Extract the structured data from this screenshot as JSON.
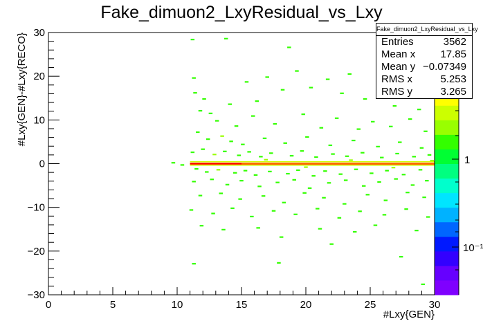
{
  "chart_data": {
    "type": "heatmap",
    "title": "Fake_dimuon2_LxyResidual_vs_Lxy",
    "xlabel": "#Lxy{GEN}",
    "ylabel": "#Lxy{GEN}-#Lxy{RECO}",
    "xlim": [
      0,
      30
    ],
    "ylim": [
      -30,
      30
    ],
    "x_ticks": [
      "0",
      "5",
      "10",
      "15",
      "20",
      "25",
      "30"
    ],
    "y_ticks": [
      "−30",
      "−20",
      "−10",
      "0",
      "10",
      "20",
      "30"
    ],
    "colorbar": {
      "scale": "log",
      "tick_labels": [
        "1",
        "10⁻¹"
      ],
      "colors": [
        "#7f00ff",
        "#6600ff",
        "#3300ff",
        "#0019ff",
        "#0066ff",
        "#00b2ff",
        "#00e5ff",
        "#00ffcc",
        "#00ff80",
        "#00ff33",
        "#33ff00",
        "#99ff00",
        "#ccff00",
        "#ffff00",
        "#ffcc00",
        "#ff9900",
        "#ff6600",
        "#ff0000"
      ]
    },
    "stats": {
      "title": "Fake_dimuon2_LxyResidual_vs_Lxy",
      "rows": [
        {
          "label": "Entries",
          "value": "3562"
        },
        {
          "label": "Mean x",
          "value": "17.85"
        },
        {
          "label": "Mean y",
          "value": "−0.07349"
        },
        {
          "label": "RMS x",
          "value": "5.253"
        },
        {
          "label": "RMS y",
          "value": "3.265"
        }
      ]
    },
    "dense_band": {
      "x_range": [
        11.0,
        30.0
      ],
      "y": 0.0,
      "color": "#ff6600"
    },
    "cells": [
      {
        "x": 9.7,
        "y": 0.2,
        "c": "#33ff00"
      },
      {
        "x": 10.4,
        "y": -0.3,
        "c": "#33ff00"
      },
      {
        "x": 11.2,
        "y": 28.4,
        "c": "#33ff00"
      },
      {
        "x": 13.8,
        "y": 28.6,
        "c": "#33ff00"
      },
      {
        "x": 18.7,
        "y": 26.6,
        "c": "#33ff00"
      },
      {
        "x": 11.3,
        "y": 19.6,
        "c": "#33ff00"
      },
      {
        "x": 11.4,
        "y": 16.2,
        "c": "#33ff00"
      },
      {
        "x": 12.1,
        "y": 14.8,
        "c": "#33ff00"
      },
      {
        "x": 11.8,
        "y": 12.1,
        "c": "#33ff00"
      },
      {
        "x": 12.6,
        "y": 11.5,
        "c": "#33ff00"
      },
      {
        "x": 14.1,
        "y": 13.6,
        "c": "#33ff00"
      },
      {
        "x": 15.4,
        "y": 18.7,
        "c": "#33ff00"
      },
      {
        "x": 16.2,
        "y": 14.3,
        "c": "#33ff00"
      },
      {
        "x": 17.0,
        "y": 19.8,
        "c": "#33ff00"
      },
      {
        "x": 18.2,
        "y": 16.9,
        "c": "#33ff00"
      },
      {
        "x": 19.3,
        "y": 21.2,
        "c": "#33ff00"
      },
      {
        "x": 20.4,
        "y": 17.4,
        "c": "#33ff00"
      },
      {
        "x": 21.7,
        "y": 19.3,
        "c": "#33ff00"
      },
      {
        "x": 22.8,
        "y": 16.1,
        "c": "#33ff00"
      },
      {
        "x": 23.4,
        "y": 20.5,
        "c": "#33ff00"
      },
      {
        "x": 24.6,
        "y": 14.8,
        "c": "#33ff00"
      },
      {
        "x": 25.8,
        "y": 17.9,
        "c": "#33ff00"
      },
      {
        "x": 26.9,
        "y": 13.2,
        "c": "#33ff00"
      },
      {
        "x": 27.7,
        "y": 16.7,
        "c": "#33ff00"
      },
      {
        "x": 28.8,
        "y": 12.4,
        "c": "#33ff00"
      },
      {
        "x": 13.1,
        "y": 9.8,
        "c": "#33ff00"
      },
      {
        "x": 14.6,
        "y": 8.6,
        "c": "#33ff00"
      },
      {
        "x": 15.9,
        "y": 10.9,
        "c": "#33ff00"
      },
      {
        "x": 17.6,
        "y": 9.1,
        "c": "#33ff00"
      },
      {
        "x": 19.8,
        "y": 11.3,
        "c": "#33ff00"
      },
      {
        "x": 21.2,
        "y": 8.2,
        "c": "#33ff00"
      },
      {
        "x": 22.4,
        "y": 10.4,
        "c": "#33ff00"
      },
      {
        "x": 24.1,
        "y": 7.9,
        "c": "#33ff00"
      },
      {
        "x": 25.2,
        "y": 9.6,
        "c": "#33ff00"
      },
      {
        "x": 26.6,
        "y": 8.5,
        "c": "#33ff00"
      },
      {
        "x": 28.1,
        "y": 10.2,
        "c": "#33ff00"
      },
      {
        "x": 29.3,
        "y": 7.4,
        "c": "#33ff00"
      },
      {
        "x": 11.6,
        "y": 7.2,
        "c": "#33ff00"
      },
      {
        "x": 12.4,
        "y": 5.6,
        "c": "#33ff00"
      },
      {
        "x": 13.5,
        "y": 6.3,
        "c": "#99ff00"
      },
      {
        "x": 14.2,
        "y": 5.1,
        "c": "#33ff00"
      },
      {
        "x": 15.1,
        "y": 4.4,
        "c": "#33ff00"
      },
      {
        "x": 16.8,
        "y": 5.8,
        "c": "#33ff00"
      },
      {
        "x": 18.4,
        "y": 4.7,
        "c": "#33ff00"
      },
      {
        "x": 20.1,
        "y": 6.1,
        "c": "#33ff00"
      },
      {
        "x": 21.9,
        "y": 4.2,
        "c": "#33ff00"
      },
      {
        "x": 23.7,
        "y": 5.3,
        "c": "#33ff00"
      },
      {
        "x": 25.6,
        "y": 3.9,
        "c": "#33ff00"
      },
      {
        "x": 27.3,
        "y": 4.9,
        "c": "#33ff00"
      },
      {
        "x": 29.0,
        "y": 3.6,
        "c": "#33ff00"
      },
      {
        "x": 11.2,
        "y": 2.6,
        "c": "#33ff00"
      },
      {
        "x": 12.0,
        "y": 3.3,
        "c": "#33ff00"
      },
      {
        "x": 12.9,
        "y": 2.1,
        "c": "#99ff00"
      },
      {
        "x": 13.7,
        "y": 2.8,
        "c": "#33ff00"
      },
      {
        "x": 14.8,
        "y": 1.9,
        "c": "#33ff00"
      },
      {
        "x": 15.6,
        "y": 2.7,
        "c": "#33ff00"
      },
      {
        "x": 16.5,
        "y": 1.6,
        "c": "#33ff00"
      },
      {
        "x": 17.3,
        "y": 2.4,
        "c": "#33ff00"
      },
      {
        "x": 18.9,
        "y": 1.8,
        "c": "#33ff00"
      },
      {
        "x": 19.7,
        "y": 2.9,
        "c": "#33ff00"
      },
      {
        "x": 20.8,
        "y": 1.5,
        "c": "#33ff00"
      },
      {
        "x": 22.1,
        "y": 2.2,
        "c": "#33ff00"
      },
      {
        "x": 23.2,
        "y": 1.7,
        "c": "#33ff00"
      },
      {
        "x": 24.4,
        "y": 2.5,
        "c": "#33ff00"
      },
      {
        "x": 25.9,
        "y": 1.4,
        "c": "#33ff00"
      },
      {
        "x": 27.1,
        "y": 2.3,
        "c": "#33ff00"
      },
      {
        "x": 28.4,
        "y": 1.6,
        "c": "#33ff00"
      },
      {
        "x": 29.6,
        "y": 2.0,
        "c": "#33ff00"
      },
      {
        "x": 11.5,
        "y": -1.2,
        "c": "#33ff00"
      },
      {
        "x": 12.3,
        "y": -1.9,
        "c": "#33ff00"
      },
      {
        "x": 13.2,
        "y": -1.4,
        "c": "#99ff00"
      },
      {
        "x": 14.5,
        "y": -2.1,
        "c": "#33ff00"
      },
      {
        "x": 15.3,
        "y": -1.6,
        "c": "#33ff00"
      },
      {
        "x": 16.1,
        "y": -2.6,
        "c": "#33ff00"
      },
      {
        "x": 17.2,
        "y": -1.8,
        "c": "#33ff00"
      },
      {
        "x": 18.6,
        "y": -2.3,
        "c": "#33ff00"
      },
      {
        "x": 19.4,
        "y": -1.5,
        "c": "#33ff00"
      },
      {
        "x": 20.6,
        "y": -2.8,
        "c": "#33ff00"
      },
      {
        "x": 21.5,
        "y": -1.7,
        "c": "#33ff00"
      },
      {
        "x": 22.7,
        "y": -2.4,
        "c": "#33ff00"
      },
      {
        "x": 23.9,
        "y": -1.3,
        "c": "#33ff00"
      },
      {
        "x": 25.1,
        "y": -2.2,
        "c": "#33ff00"
      },
      {
        "x": 26.3,
        "y": -1.6,
        "c": "#33ff00"
      },
      {
        "x": 27.6,
        "y": -2.5,
        "c": "#33ff00"
      },
      {
        "x": 28.9,
        "y": -1.4,
        "c": "#33ff00"
      },
      {
        "x": 11.3,
        "y": -4.1,
        "c": "#33ff00"
      },
      {
        "x": 12.7,
        "y": -3.6,
        "c": "#33ff00"
      },
      {
        "x": 13.9,
        "y": -4.8,
        "c": "#33ff00"
      },
      {
        "x": 15.0,
        "y": -3.9,
        "c": "#33ff00"
      },
      {
        "x": 16.4,
        "y": -5.2,
        "c": "#33ff00"
      },
      {
        "x": 17.8,
        "y": -4.3,
        "c": "#33ff00"
      },
      {
        "x": 19.1,
        "y": -3.7,
        "c": "#33ff00"
      },
      {
        "x": 20.3,
        "y": -5.6,
        "c": "#33ff00"
      },
      {
        "x": 21.8,
        "y": -4.4,
        "c": "#33ff00"
      },
      {
        "x": 23.1,
        "y": -3.8,
        "c": "#33ff00"
      },
      {
        "x": 24.5,
        "y": -5.1,
        "c": "#33ff00"
      },
      {
        "x": 25.7,
        "y": -4.2,
        "c": "#33ff00"
      },
      {
        "x": 27.0,
        "y": -3.5,
        "c": "#33ff00"
      },
      {
        "x": 28.3,
        "y": -4.9,
        "c": "#33ff00"
      },
      {
        "x": 29.4,
        "y": -3.9,
        "c": "#33ff00"
      },
      {
        "x": 11.8,
        "y": -7.3,
        "c": "#33ff00"
      },
      {
        "x": 13.4,
        "y": -6.8,
        "c": "#33ff00"
      },
      {
        "x": 14.9,
        "y": -8.1,
        "c": "#33ff00"
      },
      {
        "x": 16.7,
        "y": -7.4,
        "c": "#33ff00"
      },
      {
        "x": 18.3,
        "y": -8.9,
        "c": "#33ff00"
      },
      {
        "x": 19.9,
        "y": -6.7,
        "c": "#33ff00"
      },
      {
        "x": 21.4,
        "y": -7.8,
        "c": "#33ff00"
      },
      {
        "x": 23.0,
        "y": -9.2,
        "c": "#33ff00"
      },
      {
        "x": 24.8,
        "y": -7.1,
        "c": "#33ff00"
      },
      {
        "x": 26.2,
        "y": -8.4,
        "c": "#33ff00"
      },
      {
        "x": 27.9,
        "y": -6.6,
        "c": "#33ff00"
      },
      {
        "x": 29.2,
        "y": -7.7,
        "c": "#33ff00"
      },
      {
        "x": 11.1,
        "y": -10.6,
        "c": "#33ff00"
      },
      {
        "x": 12.8,
        "y": -11.4,
        "c": "#33ff00"
      },
      {
        "x": 14.3,
        "y": -10.2,
        "c": "#33ff00"
      },
      {
        "x": 15.8,
        "y": -12.1,
        "c": "#33ff00"
      },
      {
        "x": 17.5,
        "y": -10.8,
        "c": "#33ff00"
      },
      {
        "x": 19.2,
        "y": -11.6,
        "c": "#33ff00"
      },
      {
        "x": 20.9,
        "y": -10.3,
        "c": "#33ff00"
      },
      {
        "x": 22.6,
        "y": -12.4,
        "c": "#33ff00"
      },
      {
        "x": 24.2,
        "y": -10.9,
        "c": "#33ff00"
      },
      {
        "x": 26.1,
        "y": -11.7,
        "c": "#33ff00"
      },
      {
        "x": 27.8,
        "y": -10.4,
        "c": "#33ff00"
      },
      {
        "x": 29.5,
        "y": -12.2,
        "c": "#33ff00"
      },
      {
        "x": 11.9,
        "y": -14.2,
        "c": "#33ff00"
      },
      {
        "x": 13.6,
        "y": -15.1,
        "c": "#33ff00"
      },
      {
        "x": 16.3,
        "y": -14.7,
        "c": "#33ff00"
      },
      {
        "x": 18.1,
        "y": -16.8,
        "c": "#33ff00"
      },
      {
        "x": 21.1,
        "y": -14.9,
        "c": "#33ff00"
      },
      {
        "x": 23.8,
        "y": -15.6,
        "c": "#33ff00"
      },
      {
        "x": 25.4,
        "y": -14.1,
        "c": "#33ff00"
      },
      {
        "x": 28.6,
        "y": -15.3,
        "c": "#33ff00"
      },
      {
        "x": 22.0,
        "y": -18.4,
        "c": "#33ff00"
      },
      {
        "x": 11.3,
        "y": -22.9,
        "c": "#33ff00"
      },
      {
        "x": 17.9,
        "y": -22.7,
        "c": "#33ff00"
      },
      {
        "x": 27.4,
        "y": -21.3,
        "c": "#33ff00"
      },
      {
        "x": 29.1,
        "y": -27.6,
        "c": "#33ff00"
      },
      {
        "x": 16.9,
        "y": 0.9,
        "c": "#99ff00"
      },
      {
        "x": 20.0,
        "y": -0.8,
        "c": "#99ff00"
      },
      {
        "x": 23.5,
        "y": 0.8,
        "c": "#99ff00"
      },
      {
        "x": 26.8,
        "y": -0.9,
        "c": "#99ff00"
      },
      {
        "x": 29.8,
        "y": 0.7,
        "c": "#99ff00"
      }
    ]
  }
}
